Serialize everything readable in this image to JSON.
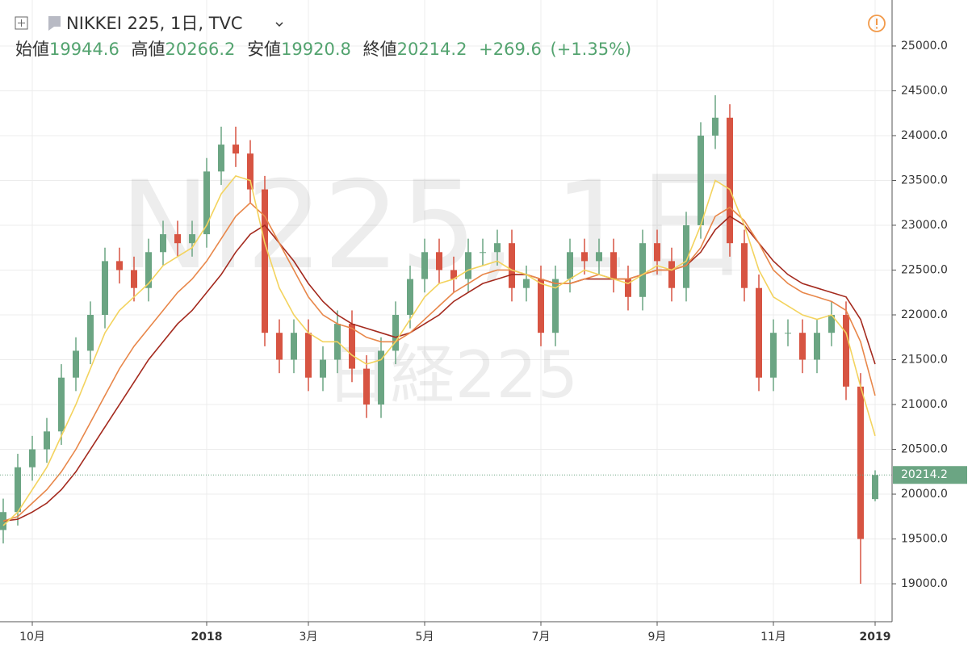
{
  "header": {
    "symbol": "NIKKEI 225, 1日, TVC",
    "open_label": "始値",
    "high_label": "高値",
    "low_label": "安値",
    "close_label": "終値",
    "change": "+269.6",
    "change_pct": "(+1.35%)"
  },
  "watermark": {
    "main": "NI225, 1日",
    "sub": "日経225"
  },
  "chart_data": {
    "type": "candlestick",
    "categories": [
      null,
      null,
      "10月",
      null,
      null,
      null,
      null,
      null,
      null,
      null,
      null,
      null,
      null,
      null,
      "2018",
      null,
      null,
      null,
      null,
      null,
      null,
      "3月",
      null,
      null,
      null,
      null,
      null,
      null,
      null,
      "5月",
      null,
      null,
      null,
      null,
      null,
      null,
      null,
      "7月",
      null,
      null,
      null,
      null,
      null,
      null,
      null,
      "9月",
      null,
      null,
      null,
      null,
      null,
      null,
      null,
      "11月",
      null,
      null,
      null,
      null,
      null,
      null,
      "2019"
    ],
    "open": [
      19600,
      19800,
      20300,
      20500,
      20700,
      21300,
      21600,
      22000,
      22600,
      22500,
      22300,
      22700,
      22900,
      22800,
      22900,
      23600,
      23900,
      23800,
      23400,
      21800,
      21500,
      21800,
      21300,
      21500,
      21900,
      21400,
      21000,
      21600,
      22000,
      22400,
      22700,
      22500,
      22400,
      22700,
      22700,
      22800,
      22300,
      22400,
      21800,
      22400,
      22700,
      22600,
      22700,
      22400,
      22200,
      22800,
      22600,
      22300,
      23000,
      24000,
      24200,
      22800,
      22300,
      21300,
      21800,
      21800,
      21500,
      21800,
      22000,
      21200,
      19944.6
    ],
    "high": [
      19950,
      20450,
      20650,
      20850,
      21450,
      21750,
      22150,
      22750,
      22750,
      22650,
      22850,
      23050,
      23050,
      23050,
      23750,
      24100,
      24100,
      23950,
      23550,
      21950,
      21950,
      21950,
      21650,
      22050,
      22050,
      21550,
      21750,
      22150,
      22550,
      22850,
      22850,
      22650,
      22850,
      22850,
      22950,
      22950,
      22550,
      22550,
      22550,
      22850,
      22850,
      22850,
      22850,
      22550,
      22950,
      22950,
      22750,
      23150,
      24150,
      24450,
      24350,
      22950,
      22450,
      21950,
      21950,
      21950,
      21950,
      22150,
      22150,
      21350,
      20266.2
    ],
    "low": [
      19450,
      19650,
      20150,
      20350,
      20550,
      21150,
      21450,
      21850,
      22350,
      22150,
      22150,
      22550,
      22650,
      22650,
      22750,
      23450,
      23650,
      23250,
      21650,
      21350,
      21350,
      21150,
      21150,
      21350,
      21250,
      20850,
      20850,
      21450,
      21850,
      22250,
      22350,
      22250,
      22250,
      22550,
      22550,
      22150,
      22150,
      21650,
      21650,
      22250,
      22450,
      22450,
      22250,
      22050,
      22050,
      22450,
      22150,
      22150,
      22850,
      23850,
      22650,
      22150,
      21150,
      21150,
      21650,
      21350,
      21350,
      21650,
      21050,
      19000,
      19920.8
    ],
    "close": [
      19800,
      20300,
      20500,
      20700,
      21300,
      21600,
      22000,
      22600,
      22500,
      22300,
      22700,
      22900,
      22800,
      22900,
      23600,
      23900,
      23800,
      23400,
      21800,
      21500,
      21800,
      21300,
      21500,
      21900,
      21400,
      21000,
      21600,
      22000,
      22400,
      22700,
      22500,
      22400,
      22700,
      22700,
      22800,
      22300,
      22400,
      21800,
      22400,
      22700,
      22600,
      22700,
      22400,
      22200,
      22800,
      22600,
      22300,
      23000,
      24000,
      24200,
      22800,
      22300,
      21300,
      21800,
      21800,
      21500,
      21800,
      22000,
      21200,
      19500,
      20214.2
    ],
    "up_color": "#6ba583",
    "down_color": "#d75442",
    "series": [
      {
        "color": "#a42a1e",
        "values": [
          19700,
          19720,
          19800,
          19900,
          20050,
          20250,
          20500,
          20750,
          21000,
          21250,
          21500,
          21700,
          21900,
          22050,
          22250,
          22450,
          22700,
          22900,
          23000,
          22800,
          22600,
          22350,
          22150,
          22000,
          21900,
          21850,
          21800,
          21750,
          21800,
          21900,
          22000,
          22150,
          22250,
          22350,
          22400,
          22450,
          22450,
          22400,
          22350,
          22350,
          22400,
          22400,
          22400,
          22400,
          22450,
          22500,
          22500,
          22550,
          22700,
          22950,
          23100,
          23000,
          22800,
          22600,
          22450,
          22350,
          22300,
          22250,
          22200,
          21950,
          21450
        ]
      },
      {
        "color": "#e8874a",
        "values": [
          19700,
          19750,
          19900,
          20050,
          20250,
          20500,
          20800,
          21100,
          21400,
          21650,
          21850,
          22050,
          22250,
          22400,
          22600,
          22850,
          23100,
          23250,
          23100,
          22800,
          22500,
          22200,
          22000,
          21900,
          21850,
          21750,
          21700,
          21700,
          21800,
          21950,
          22100,
          22250,
          22350,
          22450,
          22500,
          22500,
          22450,
          22400,
          22350,
          22350,
          22400,
          22450,
          22400,
          22400,
          22450,
          22500,
          22500,
          22550,
          22750,
          23100,
          23200,
          23050,
          22800,
          22500,
          22350,
          22250,
          22200,
          22150,
          22050,
          21700,
          21100
        ]
      },
      {
        "color": "#f3d35e",
        "values": [
          19650,
          19800,
          20050,
          20300,
          20650,
          21000,
          21400,
          21800,
          22050,
          22200,
          22350,
          22550,
          22650,
          22750,
          23000,
          23350,
          23550,
          23500,
          22800,
          22300,
          22000,
          21800,
          21700,
          21700,
          21550,
          21450,
          21500,
          21700,
          21950,
          22200,
          22350,
          22400,
          22500,
          22550,
          22600,
          22500,
          22450,
          22350,
          22300,
          22400,
          22500,
          22450,
          22400,
          22350,
          22450,
          22550,
          22500,
          22600,
          23000,
          23500,
          23400,
          23000,
          22500,
          22200,
          22100,
          22000,
          21950,
          22000,
          21800,
          21200,
          20650
        ]
      }
    ],
    "ylim": [
      18595,
      25513
    ],
    "yticks": [
      {
        "value": 19000,
        "label": "19000.0"
      },
      {
        "value": 19500,
        "label": "19500.0"
      },
      {
        "value": 20000,
        "label": "20000.0"
      },
      {
        "value": 20500,
        "label": "20500.0"
      },
      {
        "value": 21000,
        "label": "21000.0"
      },
      {
        "value": 21500,
        "label": "21500.0"
      },
      {
        "value": 22000,
        "label": "22000.0"
      },
      {
        "value": 22500,
        "label": "22500.0"
      },
      {
        "value": 23000,
        "label": "23000.0"
      },
      {
        "value": 23500,
        "label": "23500.0"
      },
      {
        "value": 24000,
        "label": "24000.0"
      },
      {
        "value": 24500,
        "label": "24500.0"
      },
      {
        "value": 25000,
        "label": "25000.0"
      }
    ],
    "grid": true
  }
}
